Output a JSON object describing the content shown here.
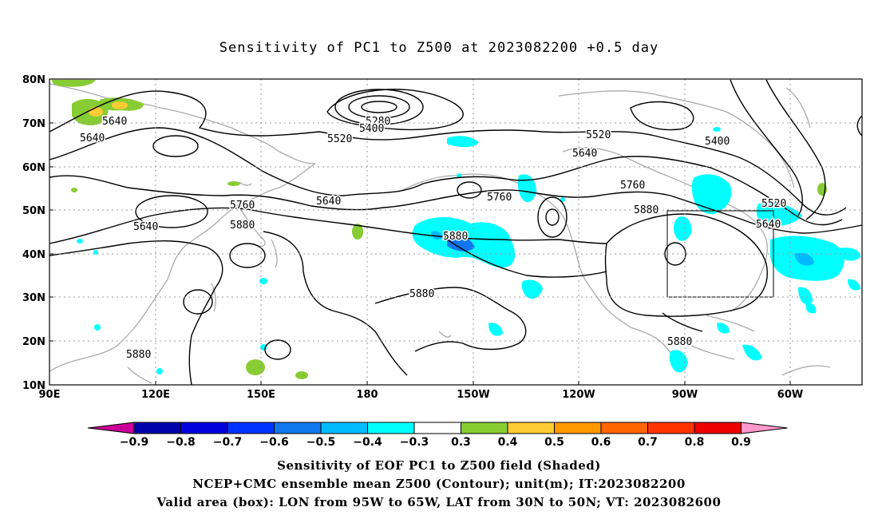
{
  "title": "Sensitivity of PC1 to Z500 at 2023082200 +0.5 day",
  "map": {
    "lat_labels": [
      "80N",
      "70N",
      "60N",
      "50N",
      "40N",
      "30N",
      "20N",
      "10N"
    ],
    "lon_labels": [
      "90E",
      "120E",
      "150E",
      "180",
      "150W",
      "120W",
      "90W",
      "60W"
    ],
    "contour_labels": [
      "5280",
      "5400",
      "5400",
      "5520",
      "5520",
      "5640",
      "5640",
      "5640",
      "5640",
      "5640",
      "5640",
      "5520",
      "5760",
      "5760",
      "5760",
      "5880",
      "5880",
      "5880",
      "5880",
      "5880",
      "5880"
    ],
    "box": {
      "lon_west": "95W",
      "lon_east": "65W",
      "lat_south": "30N",
      "lat_north": "50N"
    }
  },
  "colorbar": {
    "labels": [
      "−0.9",
      "−0.8",
      "−0.7",
      "−0.6",
      "−0.5",
      "−0.4",
      "−0.3",
      "0.3",
      "0.4",
      "0.5",
      "0.6",
      "0.7",
      "0.8",
      "0.9"
    ],
    "colors": [
      "#cc0099",
      "#0000aa",
      "#0000dd",
      "#0033ff",
      "#1177ee",
      "#00bbff",
      "#00ffff",
      "#ffffff",
      "#88cc33",
      "#ffcc33",
      "#ff9900",
      "#ff6600",
      "#ff3300",
      "#ee0000",
      "#ff99cc"
    ]
  },
  "captions": {
    "line1": "Sensitivity of EOF PC1 to Z500 field (Shaded)",
    "line2": "NCEP+CMC ensemble mean Z500 (Contour); unit(m); IT:2023082200",
    "line3": "Valid area (box): LON from 95W to 65W, LAT from 30N to 50N; VT: 2023082600"
  }
}
